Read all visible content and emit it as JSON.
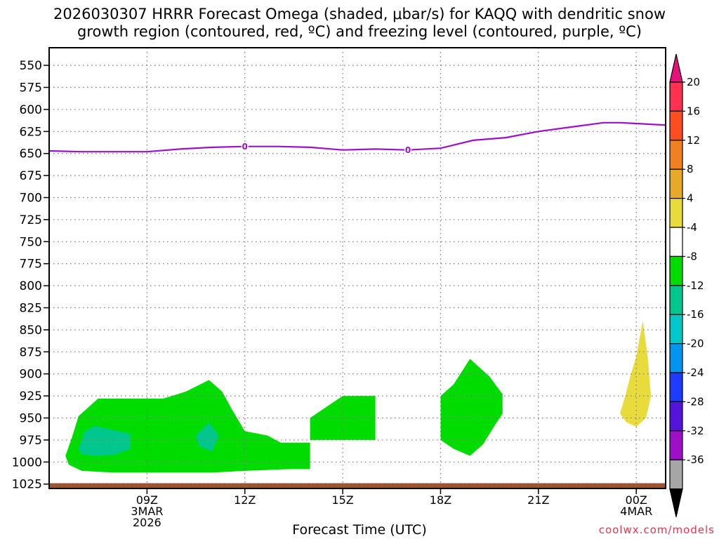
{
  "chart_data": {
    "type": "heatmap",
    "title_line1": "2026030307 HRRR Forecast Omega (shaded, μbar/s) for KAQQ with dendritic snow",
    "title_line2": "growth region (contoured, red, ºC) and freezing level (contoured, purple, ºC)",
    "xlabel": "Forecast Time (UTC)",
    "credit": "coolwx.com/models",
    "y_ticks": [
      550,
      575,
      600,
      625,
      650,
      675,
      700,
      725,
      750,
      775,
      800,
      825,
      850,
      875,
      900,
      925,
      950,
      975,
      1000,
      1025
    ],
    "y_range_hpa": [
      530,
      1030
    ],
    "x_range_hours": [
      6.0,
      24.9
    ],
    "x_ticks": [
      {
        "hour": 9,
        "label": "09Z",
        "sub1": "3MAR",
        "sub2": "2026"
      },
      {
        "hour": 12,
        "label": "12Z",
        "sub1": "",
        "sub2": ""
      },
      {
        "hour": 15,
        "label": "15Z",
        "sub1": "",
        "sub2": ""
      },
      {
        "hour": 18,
        "label": "18Z",
        "sub1": "",
        "sub2": ""
      },
      {
        "hour": 21,
        "label": "21Z",
        "sub1": "",
        "sub2": ""
      },
      {
        "hour": 24,
        "label": "00Z",
        "sub1": "4MAR",
        "sub2": ""
      }
    ],
    "grid": true,
    "freezing_level": {
      "label": "0",
      "label_points": [
        [
          12.0,
          642
        ],
        [
          17.0,
          646
        ]
      ],
      "x": [
        6.0,
        7.0,
        8.0,
        9.0,
        10.0,
        11.0,
        12.0,
        13.0,
        14.0,
        15.0,
        16.0,
        17.0,
        18.0,
        19.0,
        20.0,
        21.0,
        22.0,
        23.0,
        23.5,
        24.0,
        25.0
      ],
      "p": [
        647,
        648,
        648,
        648,
        645,
        643,
        642,
        642,
        643,
        646,
        645,
        646,
        644,
        635,
        632,
        625,
        620,
        615,
        615,
        616,
        618
      ]
    },
    "omega_regions": [
      {
        "range": "-8 to -4",
        "color": "#00dc00",
        "points": [
          [
            6.5,
            993
          ],
          [
            6.7,
            972
          ],
          [
            6.9,
            948
          ],
          [
            7.5,
            928
          ],
          [
            8.0,
            928
          ],
          [
            9.5,
            928
          ],
          [
            10.2,
            920
          ],
          [
            10.9,
            907
          ],
          [
            11.3,
            920
          ],
          [
            11.6,
            940
          ],
          [
            12.0,
            965
          ],
          [
            12.7,
            970
          ],
          [
            13.1,
            978
          ],
          [
            14.0,
            978
          ],
          [
            14.0,
            1008
          ],
          [
            13.4,
            1008
          ],
          [
            12.0,
            1010
          ],
          [
            11.0,
            1012
          ],
          [
            9.5,
            1012
          ],
          [
            8.0,
            1012
          ],
          [
            7.0,
            1010
          ],
          [
            6.6,
            1003
          ]
        ]
      },
      {
        "range": "-12 to -8",
        "color": "#00c88c",
        "points": [
          [
            6.9,
            985
          ],
          [
            7.1,
            965
          ],
          [
            7.4,
            959
          ],
          [
            8.0,
            964
          ],
          [
            8.5,
            968
          ],
          [
            8.5,
            985
          ],
          [
            8.0,
            992
          ],
          [
            7.4,
            993
          ],
          [
            7.0,
            991
          ]
        ]
      },
      {
        "range": "-12 to -8",
        "color": "#00c88c",
        "points": [
          [
            10.5,
            970
          ],
          [
            10.9,
            955
          ],
          [
            11.2,
            970
          ],
          [
            11.0,
            988
          ],
          [
            10.6,
            982
          ]
        ]
      },
      {
        "range": "-8 to -4",
        "color": "#00dc00",
        "points": [
          [
            14.0,
            950
          ],
          [
            15.0,
            925
          ],
          [
            16.0,
            925
          ],
          [
            16.0,
            975
          ],
          [
            14.0,
            975
          ]
        ]
      },
      {
        "range": "-8 to -4",
        "color": "#00dc00",
        "points": [
          [
            18.0,
            925
          ],
          [
            18.4,
            912
          ],
          [
            18.9,
            883
          ],
          [
            19.5,
            903
          ],
          [
            19.9,
            923
          ],
          [
            19.9,
            945
          ],
          [
            19.6,
            962
          ],
          [
            19.3,
            980
          ],
          [
            18.9,
            993
          ],
          [
            18.4,
            985
          ],
          [
            18.0,
            975
          ]
        ]
      },
      {
        "range": "4 to 8",
        "color": "#e8dc3c",
        "points": [
          [
            23.5,
            945
          ],
          [
            23.7,
            920
          ],
          [
            23.8,
            905
          ],
          [
            24.0,
            880
          ],
          [
            24.2,
            840
          ],
          [
            24.35,
            880
          ],
          [
            24.45,
            925
          ],
          [
            24.3,
            950
          ],
          [
            24.0,
            960
          ],
          [
            23.7,
            955
          ]
        ]
      }
    ],
    "ground": {
      "color": "#a0522d",
      "p_top": 1024
    },
    "colorbar": {
      "labels": [
        20,
        16,
        12,
        8,
        4,
        -4,
        -8,
        -12,
        -16,
        -20,
        -24,
        -28,
        -32,
        -36
      ],
      "colors": [
        "#ff3050",
        "#ff4c20",
        "#f08020",
        "#e6aa28",
        "#e8dc3c",
        "#ffffff",
        "#00dc00",
        "#00c88c",
        "#00c8c8",
        "#0096f0",
        "#1e3cff",
        "#5514dc",
        "#a00fc8",
        "#a6a6a6"
      ],
      "top_color": "#e8117c",
      "bottom_color": "#000000"
    }
  }
}
